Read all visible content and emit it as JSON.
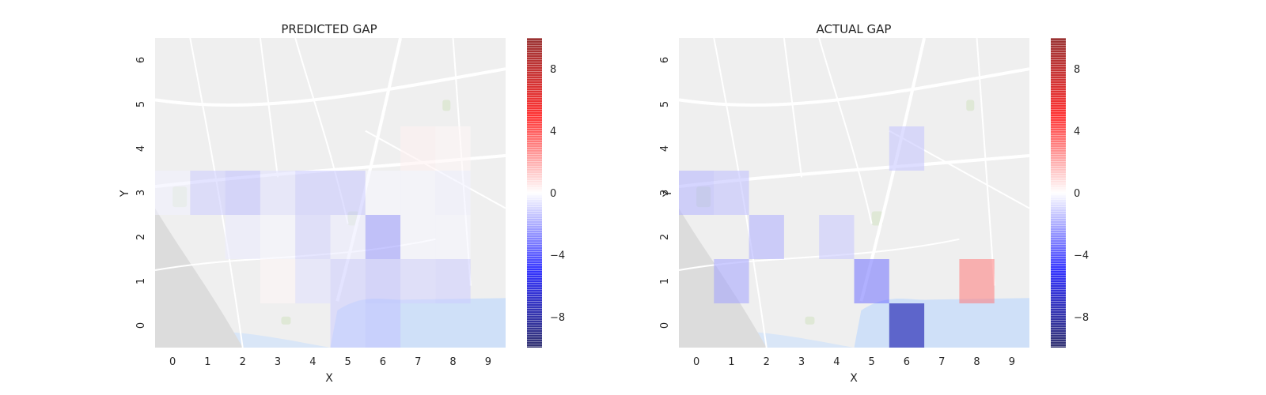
{
  "chart_data": [
    {
      "type": "heatmap",
      "title": "PREDICTED GAP",
      "xlabel": "X",
      "ylabel": "Y",
      "x_ticks": [
        "0",
        "1",
        "2",
        "3",
        "4",
        "5",
        "6",
        "7",
        "8",
        "9"
      ],
      "y_ticks": [
        "0",
        "1",
        "2",
        "3",
        "4",
        "5",
        "6"
      ],
      "xlim": [
        -0.5,
        9.5
      ],
      "ylim": [
        -0.5,
        6.5
      ],
      "background": "street map",
      "cells": [
        {
          "x": 1,
          "y": 3,
          "value": -1.0
        },
        {
          "x": 2,
          "y": 3,
          "value": -1.3
        },
        {
          "x": 3,
          "y": 3,
          "value": -0.6
        },
        {
          "x": 4,
          "y": 3,
          "value": -1.1
        },
        {
          "x": 5,
          "y": 3,
          "value": -1.1
        },
        {
          "x": 6,
          "y": 3,
          "value": -0.2
        },
        {
          "x": 7,
          "y": 3,
          "value": -0.2
        },
        {
          "x": 8,
          "y": 3,
          "value": -0.3
        },
        {
          "x": 0,
          "y": 3,
          "value": -0.3
        },
        {
          "x": 7,
          "y": 4,
          "value": 0.3
        },
        {
          "x": 8,
          "y": 4,
          "value": 0.2
        },
        {
          "x": 2,
          "y": 2,
          "value": -0.4
        },
        {
          "x": 3,
          "y": 2,
          "value": -0.2
        },
        {
          "x": 4,
          "y": 2,
          "value": -0.9
        },
        {
          "x": 5,
          "y": 2,
          "value": -0.4
        },
        {
          "x": 6,
          "y": 2,
          "value": -2.0
        },
        {
          "x": 7,
          "y": 2,
          "value": -0.2
        },
        {
          "x": 8,
          "y": 2,
          "value": -0.2
        },
        {
          "x": 3,
          "y": 1,
          "value": 0.2
        },
        {
          "x": 4,
          "y": 1,
          "value": -0.6
        },
        {
          "x": 5,
          "y": 1,
          "value": -1.0
        },
        {
          "x": 6,
          "y": 1,
          "value": -1.3
        },
        {
          "x": 7,
          "y": 1,
          "value": -0.9
        },
        {
          "x": 8,
          "y": 1,
          "value": -1.0
        },
        {
          "x": 5,
          "y": 0,
          "value": -1.0
        },
        {
          "x": 6,
          "y": 0,
          "value": -1.2
        }
      ],
      "colorbar": {
        "min": -10,
        "max": 10,
        "ticks": [
          -8,
          -4,
          0,
          4,
          8
        ],
        "tick_labels": [
          "−8",
          "−4",
          "0",
          "4",
          "8"
        ],
        "colormap": "seismic"
      }
    },
    {
      "type": "heatmap",
      "title": "ACTUAL GAP",
      "xlabel": "X",
      "ylabel": "Y",
      "x_ticks": [
        "0",
        "1",
        "2",
        "3",
        "4",
        "5",
        "6",
        "7",
        "8",
        "9"
      ],
      "y_ticks": [
        "0",
        "1",
        "2",
        "3",
        "4",
        "5",
        "6"
      ],
      "xlim": [
        -0.5,
        9.5
      ],
      "ylim": [
        -0.5,
        6.5
      ],
      "background": "street map",
      "cells": [
        {
          "x": 6,
          "y": 4,
          "value": -1.2
        },
        {
          "x": 0,
          "y": 3,
          "value": -1.5
        },
        {
          "x": 1,
          "y": 3,
          "value": -1.3
        },
        {
          "x": 2,
          "y": 2,
          "value": -1.6
        },
        {
          "x": 4,
          "y": 2,
          "value": -1.1
        },
        {
          "x": 1,
          "y": 1,
          "value": -1.8
        },
        {
          "x": 5,
          "y": 1,
          "value": -2.8
        },
        {
          "x": 8,
          "y": 1,
          "value": 2.6
        },
        {
          "x": 6,
          "y": 0,
          "value": -7.5
        }
      ],
      "colorbar": {
        "min": -10,
        "max": 10,
        "ticks": [
          -8,
          -4,
          0,
          4,
          8
        ],
        "tick_labels": [
          "−8",
          "−4",
          "0",
          "4",
          "8"
        ],
        "colormap": "seismic"
      }
    }
  ]
}
